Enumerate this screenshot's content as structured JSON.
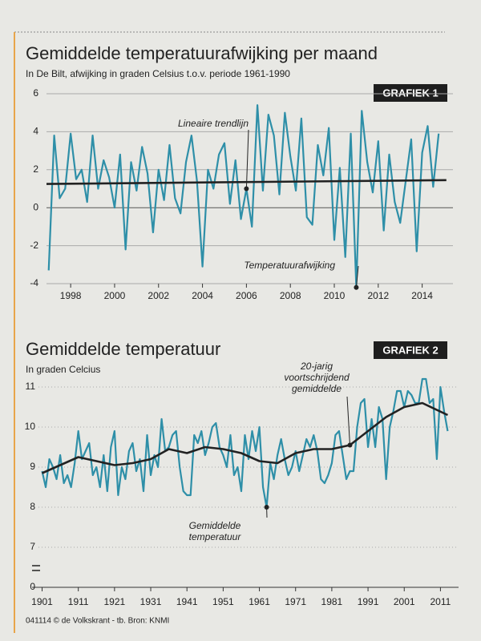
{
  "chart_data": [
    {
      "type": "line",
      "title": "Gemiddelde temperatuurafwijking per maand",
      "subtitle": "In De Bilt, afwijking in graden Celsius t.o.v. periode 1961-1990",
      "badge": "GRAFIEK 1",
      "x": [
        1997,
        1997.25,
        1997.5,
        1997.75,
        1998,
        1998.25,
        1998.5,
        1998.75,
        1999,
        1999.25,
        1999.5,
        1999.75,
        2000,
        2000.25,
        2000.5,
        2000.75,
        2001,
        2001.25,
        2001.5,
        2001.75,
        2002,
        2002.25,
        2002.5,
        2002.75,
        2003,
        2003.25,
        2003.5,
        2003.75,
        2004,
        2004.25,
        2004.5,
        2004.75,
        2005,
        2005.25,
        2005.5,
        2005.75,
        2006,
        2006.25,
        2006.5,
        2006.75,
        2007,
        2007.25,
        2007.5,
        2007.75,
        2008,
        2008.25,
        2008.5,
        2008.75,
        2009,
        2009.25,
        2009.5,
        2009.75,
        2010,
        2010.25,
        2010.5,
        2010.75,
        2011,
        2011.25,
        2011.5,
        2011.75,
        2012,
        2012.25,
        2012.5,
        2012.75,
        2013,
        2013.25,
        2013.5,
        2013.75,
        2014,
        2014.25,
        2014.5,
        2014.75
      ],
      "series": [
        {
          "name": "Temperatuurafwijking",
          "color": "#2e8fa8",
          "values": [
            -3.3,
            3.8,
            0.5,
            1.0,
            3.9,
            1.5,
            2.0,
            0.3,
            3.8,
            1.0,
            2.5,
            1.6,
            0.0,
            2.8,
            -2.2,
            2.4,
            0.9,
            3.2,
            1.8,
            -1.3,
            2.0,
            0.4,
            3.3,
            0.5,
            -0.3,
            2.4,
            3.8,
            1.4,
            -3.1,
            2.0,
            1.0,
            2.8,
            3.4,
            0.2,
            2.5,
            -0.6,
            1.0,
            -1.0,
            5.4,
            0.9,
            4.9,
            3.8,
            0.7,
            5.0,
            2.7,
            0.9,
            4.7,
            -0.5,
            -0.9,
            3.3,
            1.7,
            4.2,
            -1.7,
            2.1,
            -2.6,
            3.9,
            -4.2,
            5.1,
            2.4,
            0.8,
            3.5,
            -1.2,
            2.8,
            0.3,
            -0.8,
            1.4,
            3.6,
            -2.3,
            2.9,
            4.3,
            1.1,
            3.9
          ]
        },
        {
          "name": "Lineaire trendlijn",
          "color": "#222222",
          "x": [
            1996.9,
            2015.1
          ],
          "values": [
            1.25,
            1.45
          ]
        }
      ],
      "annotations": [
        [
          "Lineaire trendlijn"
        ],
        [
          "Temperatuurafwijking"
        ]
      ],
      "xlim": [
        1996.9,
        2015.4
      ],
      "xticks": [
        1998,
        2000,
        2002,
        2004,
        2006,
        2008,
        2010,
        2012,
        2014
      ],
      "ylim": [
        -4,
        6
      ],
      "yticks": [
        -4,
        -2,
        0,
        2,
        4,
        6
      ],
      "grid": true
    },
    {
      "type": "line",
      "title": "Gemiddelde temperatuur",
      "subtitle": "In graden Celcius",
      "badge": "GRAFIEK 2",
      "x": [
        1901,
        1902,
        1903,
        1904,
        1905,
        1906,
        1907,
        1908,
        1909,
        1910,
        1911,
        1912,
        1913,
        1914,
        1915,
        1916,
        1917,
        1918,
        1919,
        1920,
        1921,
        1922,
        1923,
        1924,
        1925,
        1926,
        1927,
        1928,
        1929,
        1930,
        1931,
        1932,
        1933,
        1934,
        1935,
        1936,
        1937,
        1938,
        1939,
        1940,
        1941,
        1942,
        1943,
        1944,
        1945,
        1946,
        1947,
        1948,
        1949,
        1950,
        1951,
        1952,
        1953,
        1954,
        1955,
        1956,
        1957,
        1958,
        1959,
        1960,
        1961,
        1962,
        1963,
        1964,
        1965,
        1966,
        1967,
        1968,
        1969,
        1970,
        1971,
        1972,
        1973,
        1974,
        1975,
        1976,
        1977,
        1978,
        1979,
        1980,
        1981,
        1982,
        1983,
        1984,
        1985,
        1986,
        1987,
        1988,
        1989,
        1990,
        1991,
        1992,
        1993,
        1994,
        1995,
        1996,
        1997,
        1998,
        1999,
        2000,
        2001,
        2002,
        2003,
        2004,
        2005,
        2006,
        2007,
        2008,
        2009,
        2010,
        2011,
        2012,
        2013
      ],
      "series": [
        {
          "name": "Gemiddelde temperatuur",
          "color": "#2e8fa8",
          "values": [
            8.9,
            8.5,
            9.2,
            9.0,
            8.7,
            9.3,
            8.6,
            8.8,
            8.5,
            9.1,
            9.9,
            9.2,
            9.4,
            9.6,
            8.8,
            9.0,
            8.5,
            9.3,
            8.4,
            9.5,
            9.9,
            8.3,
            9.0,
            8.7,
            9.4,
            9.6,
            8.9,
            9.2,
            8.4,
            9.8,
            8.8,
            9.3,
            9.0,
            10.2,
            9.4,
            9.5,
            9.8,
            9.9,
            9.0,
            8.4,
            8.3,
            8.3,
            9.8,
            9.6,
            9.9,
            9.3,
            9.6,
            10.0,
            10.1,
            9.5,
            9.3,
            9.0,
            9.8,
            8.8,
            9.0,
            8.4,
            9.8,
            9.2,
            9.9,
            9.4,
            10.0,
            8.5,
            8.0,
            9.1,
            8.7,
            9.3,
            9.7,
            9.2,
            8.8,
            9.0,
            9.4,
            8.9,
            9.3,
            9.7,
            9.5,
            9.8,
            9.4,
            8.7,
            8.6,
            8.8,
            9.1,
            9.8,
            9.9,
            9.3,
            8.7,
            8.9,
            8.9,
            10.0,
            10.6,
            10.7,
            9.5,
            10.2,
            9.5,
            10.5,
            10.2,
            8.7,
            10.0,
            10.4,
            10.9,
            10.9,
            10.5,
            10.9,
            10.8,
            10.6,
            10.6,
            11.2,
            11.2,
            10.6,
            10.7,
            9.2,
            11.0,
            10.4,
            9.9
          ]
        },
        {
          "name": "20-jarig voortschrijdend gemiddelde",
          "color": "#222222",
          "x": [
            1901,
            1906,
            1911,
            1916,
            1921,
            1926,
            1931,
            1936,
            1941,
            1946,
            1951,
            1956,
            1961,
            1966,
            1971,
            1976,
            1981,
            1986,
            1991,
            1996,
            2001,
            2006,
            2013
          ],
          "values": [
            8.85,
            9.05,
            9.25,
            9.15,
            9.05,
            9.1,
            9.2,
            9.45,
            9.35,
            9.5,
            9.45,
            9.35,
            9.15,
            9.1,
            9.35,
            9.45,
            9.45,
            9.55,
            9.9,
            10.25,
            10.5,
            10.6,
            10.3
          ]
        }
      ],
      "annotations": [
        [
          "Gemiddelde",
          "temperatuur"
        ],
        [
          "20-jarig",
          "voortschrijdend",
          "gemiddelde"
        ]
      ],
      "xlim": [
        1900,
        2016
      ],
      "xticks": [
        1901,
        1911,
        1921,
        1931,
        1941,
        1951,
        1961,
        1971,
        1981,
        1991,
        2001,
        2011
      ],
      "ylim": [
        6.8,
        11.4
      ],
      "yticks": [
        7,
        8,
        9,
        10,
        11
      ],
      "y_break_tick": 0,
      "grid": true,
      "source": "041114 © de Volkskrant - tb. Bron: KNMI"
    }
  ]
}
